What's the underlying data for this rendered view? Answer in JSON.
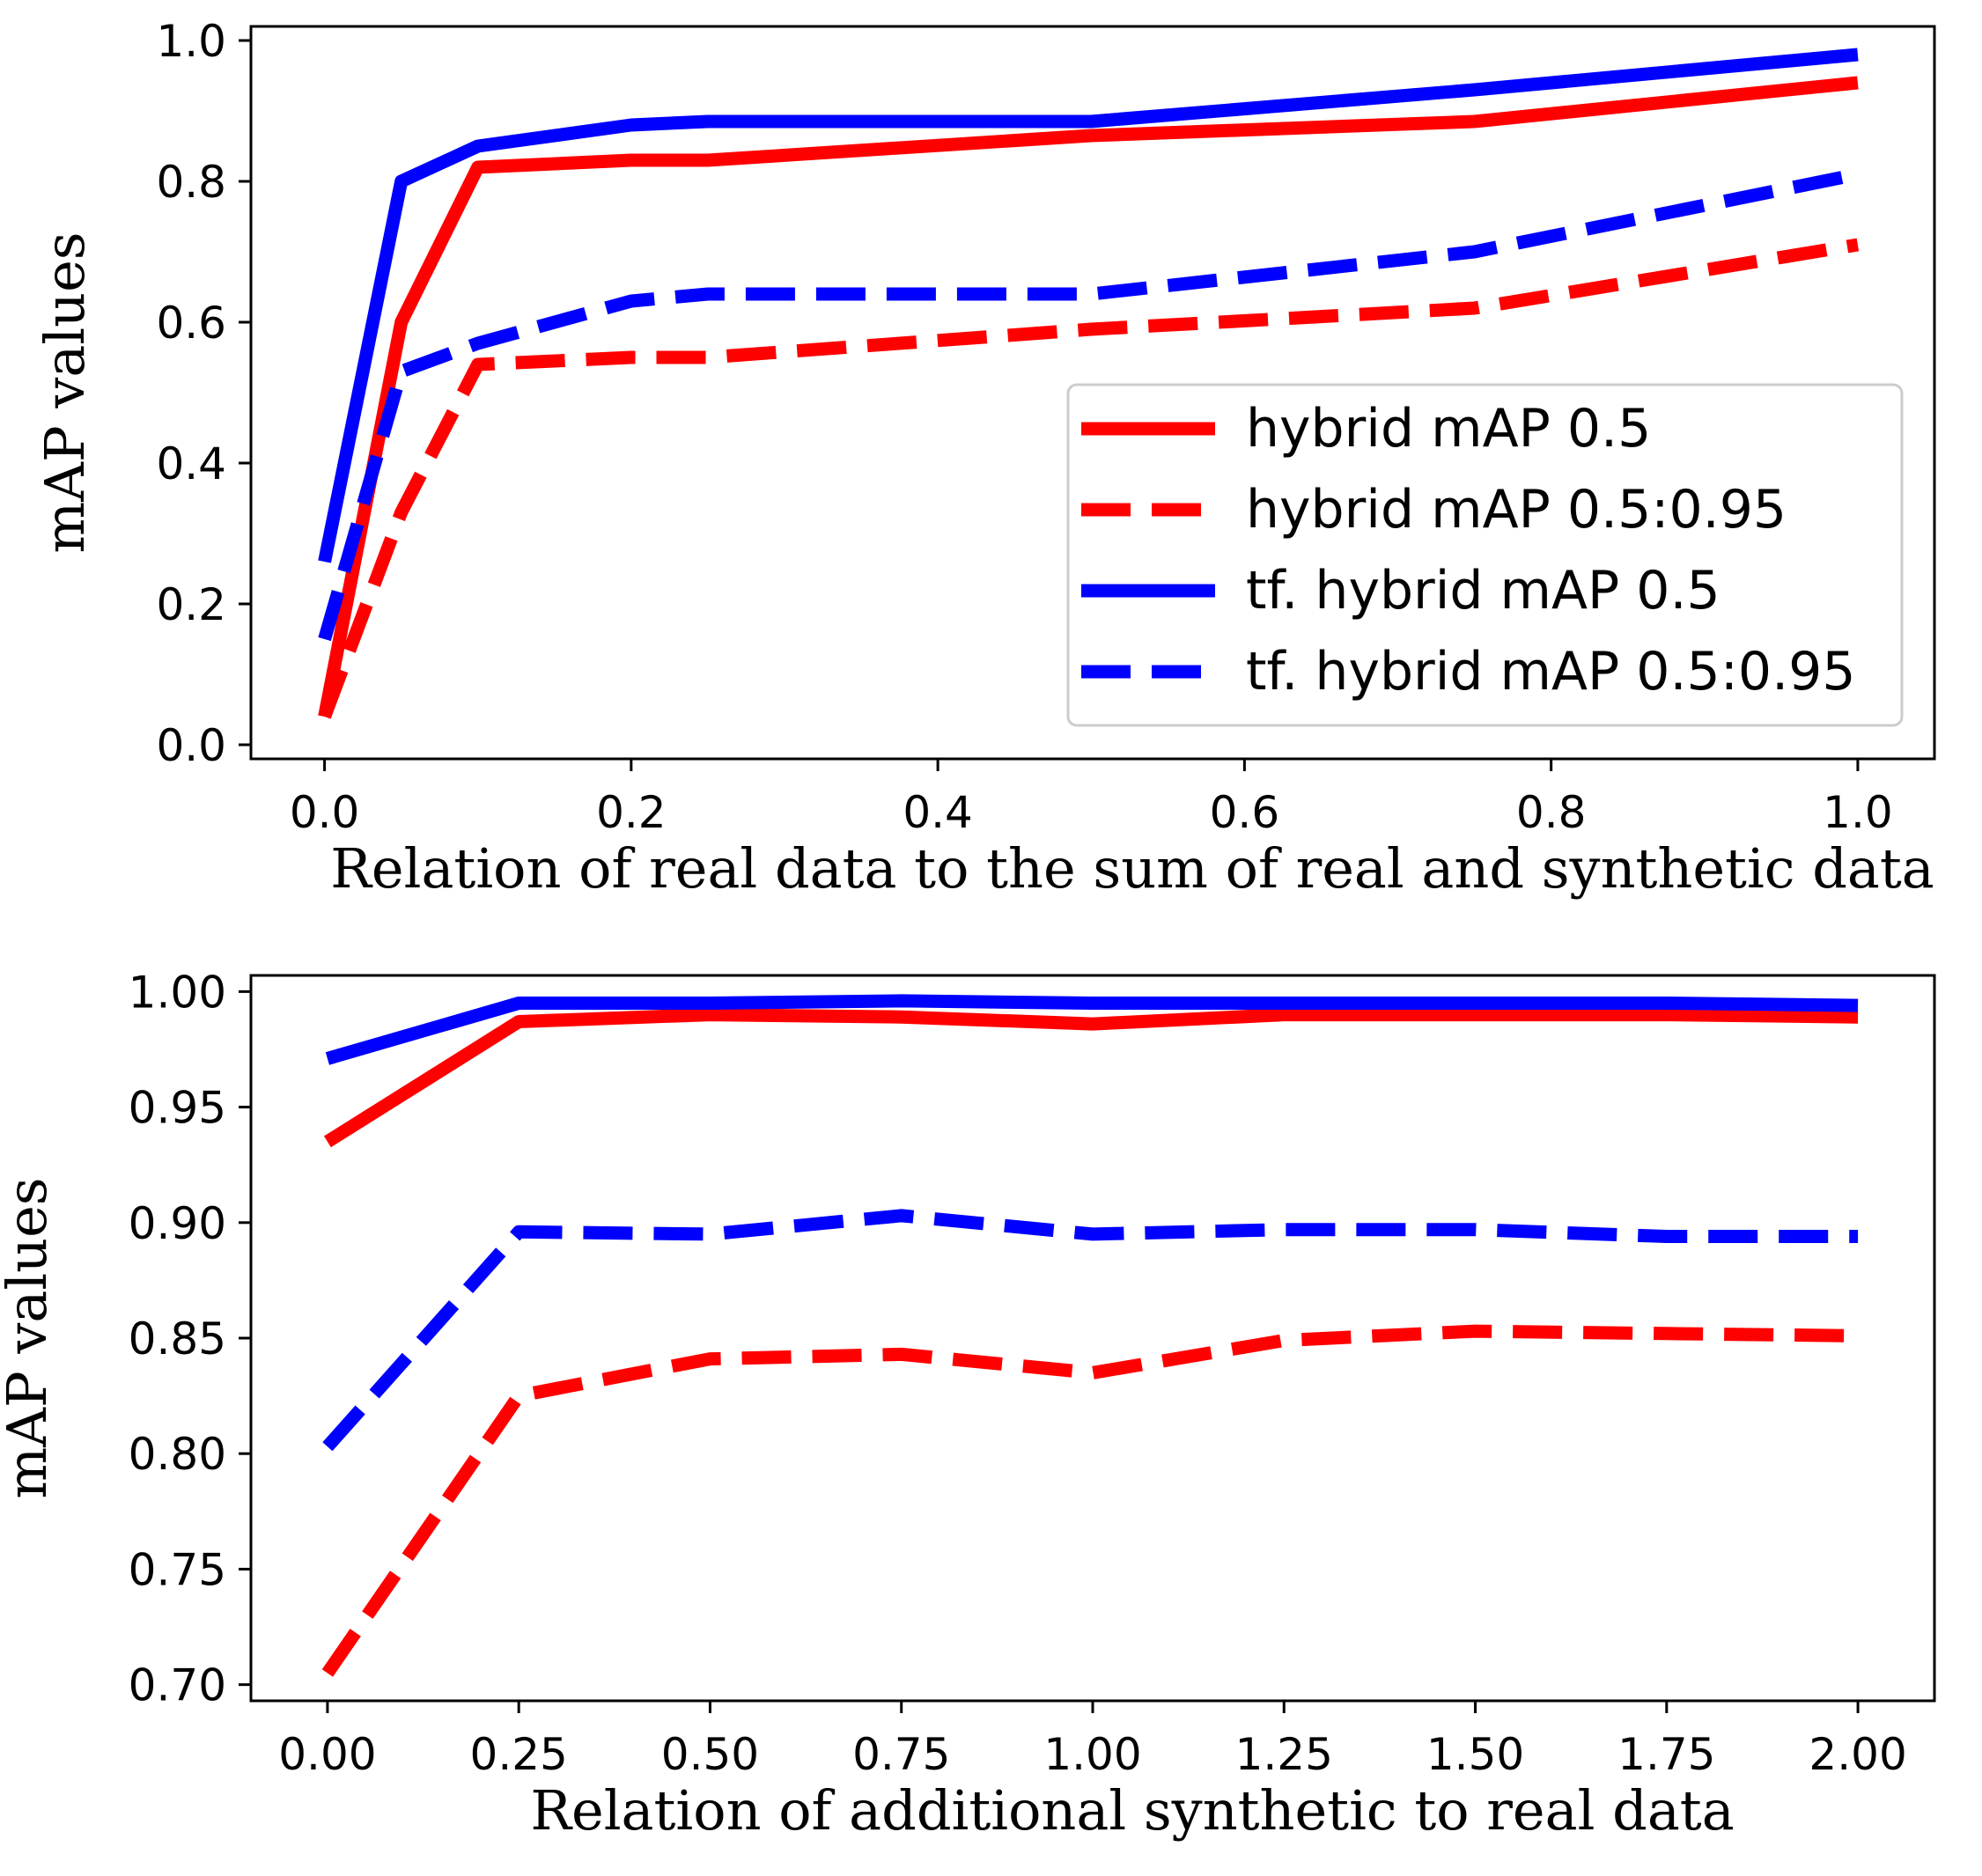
{
  "chart_data": [
    {
      "type": "line",
      "xlabel": "Relation of real data to the sum of real and synthetic data",
      "ylabel": "mAP values",
      "xlim": [
        -0.048,
        1.05
      ],
      "ylim": [
        -0.02,
        1.02
      ],
      "xticks": [
        0.0,
        0.2,
        0.4,
        0.6,
        0.8,
        1.0
      ],
      "xtick_labels": [
        "0.0",
        "0.2",
        "0.4",
        "0.6",
        "0.8",
        "1.0"
      ],
      "yticks": [
        0.0,
        0.2,
        0.4,
        0.6,
        0.8,
        1.0
      ],
      "ytick_labels": [
        "0.0",
        "0.2",
        "0.4",
        "0.6",
        "0.8",
        "1.0"
      ],
      "legend": {
        "placement": "center-right"
      },
      "series": [
        {
          "name": "hybrid mAP 0.5",
          "color": "#ff0000",
          "style": "solid",
          "x": [
            0.0,
            0.05,
            0.1,
            0.2,
            0.25,
            0.5,
            0.75,
            1.0
          ],
          "y": [
            0.04,
            0.6,
            0.82,
            0.83,
            0.83,
            0.865,
            0.885,
            0.94
          ]
        },
        {
          "name": "hybrid mAP 0.5:0.95",
          "color": "#ff0000",
          "style": "dashed",
          "x": [
            0.0,
            0.05,
            0.1,
            0.2,
            0.25,
            0.5,
            0.75,
            1.0
          ],
          "y": [
            0.04,
            0.33,
            0.54,
            0.55,
            0.55,
            0.59,
            0.62,
            0.71
          ]
        },
        {
          "name": "tf. hybrid mAP 0.5",
          "color": "#0000ff",
          "style": "solid",
          "x": [
            0.0,
            0.05,
            0.1,
            0.2,
            0.25,
            0.5,
            0.75,
            1.0
          ],
          "y": [
            0.26,
            0.8,
            0.85,
            0.88,
            0.885,
            0.885,
            0.93,
            0.98
          ]
        },
        {
          "name": "tf. hybrid mAP 0.5:0.95",
          "color": "#0000ff",
          "style": "dashed",
          "x": [
            0.0,
            0.05,
            0.1,
            0.2,
            0.25,
            0.5,
            0.75,
            1.0
          ],
          "y": [
            0.15,
            0.53,
            0.57,
            0.63,
            0.64,
            0.64,
            0.7,
            0.81
          ]
        }
      ]
    },
    {
      "type": "line",
      "xlabel": "Relation of additional synthetic to real data",
      "ylabel": "mAP values",
      "xlim": [
        -0.1,
        2.1
      ],
      "ylim": [
        0.693,
        1.007
      ],
      "xticks": [
        0.0,
        0.25,
        0.5,
        0.75,
        1.0,
        1.25,
        1.5,
        1.75,
        2.0
      ],
      "xtick_labels": [
        "0.00",
        "0.25",
        "0.50",
        "0.75",
        "1.00",
        "1.25",
        "1.50",
        "1.75",
        "2.00"
      ],
      "yticks": [
        0.7,
        0.75,
        0.8,
        0.85,
        0.9,
        0.95,
        1.0
      ],
      "ytick_labels": [
        "0.70",
        "0.75",
        "0.80",
        "0.85",
        "0.90",
        "0.95",
        "1.00"
      ],
      "series": [
        {
          "name": "hybrid mAP 0.5",
          "color": "#ff0000",
          "style": "solid",
          "x": [
            0.0,
            0.25,
            0.5,
            0.75,
            1.0,
            1.25,
            1.5,
            1.75,
            2.0
          ],
          "y": [
            0.935,
            0.987,
            0.99,
            0.989,
            0.986,
            0.99,
            0.99,
            0.99,
            0.989
          ]
        },
        {
          "name": "hybrid mAP 0.5:0.95",
          "color": "#ff0000",
          "style": "dashed",
          "x": [
            0.0,
            0.25,
            0.5,
            0.75,
            1.0,
            1.25,
            1.5,
            1.75,
            2.0
          ],
          "y": [
            0.705,
            0.825,
            0.841,
            0.843,
            0.835,
            0.849,
            0.853,
            0.852,
            0.851
          ]
        },
        {
          "name": "tf. hybrid mAP 0.5",
          "color": "#0000ff",
          "style": "solid",
          "x": [
            0.0,
            0.25,
            0.5,
            0.75,
            1.0,
            1.25,
            1.5,
            1.75,
            2.0
          ],
          "y": [
            0.971,
            0.995,
            0.995,
            0.996,
            0.995,
            0.995,
            0.995,
            0.995,
            0.994
          ]
        },
        {
          "name": "tf. hybrid mAP 0.5:0.95",
          "color": "#0000ff",
          "style": "dashed",
          "x": [
            0.0,
            0.25,
            0.5,
            0.75,
            1.0,
            1.25,
            1.5,
            1.75,
            2.0
          ],
          "y": [
            0.803,
            0.896,
            0.895,
            0.903,
            0.895,
            0.897,
            0.897,
            0.894,
            0.894
          ]
        }
      ]
    }
  ]
}
